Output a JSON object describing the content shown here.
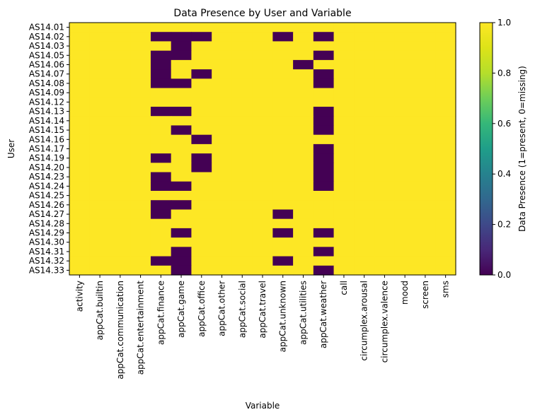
{
  "chart_data": {
    "type": "heatmap",
    "title": "Data Presence by User and Variable",
    "xlabel": "Variable",
    "ylabel": "User",
    "colorbar_label": "Data Presence (1=present, 0=missing)",
    "colorbar_ticks": [
      "0.0",
      "0.2",
      "0.4",
      "0.6",
      "0.8",
      "1.0"
    ],
    "colorbar_range": [
      0,
      1
    ],
    "colormap": "viridis",
    "colors": {
      "present": "#fde725",
      "missing": "#440154"
    },
    "x_categories": [
      "activity",
      "appCat.builtin",
      "appCat.communication",
      "appCat.entertainment",
      "appCat.finance",
      "appCat.game",
      "appCat.office",
      "appCat.other",
      "appCat.social",
      "appCat.travel",
      "appCat.unknown",
      "appCat.utilities",
      "appCat.weather",
      "call",
      "circumplex.arousal",
      "circumplex.valence",
      "mood",
      "screen",
      "sms"
    ],
    "y_categories": [
      "AS14.01",
      "AS14.02",
      "AS14.03",
      "AS14.05",
      "AS14.06",
      "AS14.07",
      "AS14.08",
      "AS14.09",
      "AS14.12",
      "AS14.13",
      "AS14.14",
      "AS14.15",
      "AS14.16",
      "AS14.17",
      "AS14.19",
      "AS14.20",
      "AS14.23",
      "AS14.24",
      "AS14.25",
      "AS14.26",
      "AS14.27",
      "AS14.28",
      "AS14.29",
      "AS14.30",
      "AS14.31",
      "AS14.32",
      "AS14.33"
    ],
    "values": [
      [
        1,
        1,
        1,
        1,
        1,
        1,
        1,
        1,
        1,
        1,
        1,
        1,
        1,
        1,
        1,
        1,
        1,
        1,
        1
      ],
      [
        1,
        1,
        1,
        1,
        0,
        0,
        0,
        1,
        1,
        1,
        0,
        1,
        0,
        1,
        1,
        1,
        1,
        1,
        1
      ],
      [
        1,
        1,
        1,
        1,
        1,
        0,
        1,
        1,
        1,
        1,
        1,
        1,
        1,
        1,
        1,
        1,
        1,
        1,
        1
      ],
      [
        1,
        1,
        1,
        1,
        0,
        0,
        1,
        1,
        1,
        1,
        1,
        1,
        0,
        1,
        1,
        1,
        1,
        1,
        1
      ],
      [
        1,
        1,
        1,
        1,
        0,
        1,
        1,
        1,
        1,
        1,
        1,
        0,
        1,
        1,
        1,
        1,
        1,
        1,
        1
      ],
      [
        1,
        1,
        1,
        1,
        0,
        1,
        0,
        1,
        1,
        1,
        1,
        1,
        0,
        1,
        1,
        1,
        1,
        1,
        1
      ],
      [
        1,
        1,
        1,
        1,
        0,
        0,
        1,
        1,
        1,
        1,
        1,
        1,
        0,
        1,
        1,
        1,
        1,
        1,
        1
      ],
      [
        1,
        1,
        1,
        1,
        1,
        1,
        1,
        1,
        1,
        1,
        1,
        1,
        1,
        1,
        1,
        1,
        1,
        1,
        1
      ],
      [
        1,
        1,
        1,
        1,
        1,
        1,
        1,
        1,
        1,
        1,
        1,
        1,
        1,
        1,
        1,
        1,
        1,
        1,
        1
      ],
      [
        1,
        1,
        1,
        1,
        0,
        0,
        1,
        1,
        1,
        1,
        1,
        1,
        0,
        1,
        1,
        1,
        1,
        1,
        1
      ],
      [
        1,
        1,
        1,
        1,
        1,
        1,
        1,
        1,
        1,
        1,
        1,
        1,
        0,
        1,
        1,
        1,
        1,
        1,
        1
      ],
      [
        1,
        1,
        1,
        1,
        1,
        0,
        1,
        1,
        1,
        1,
        1,
        1,
        0,
        1,
        1,
        1,
        1,
        1,
        1
      ],
      [
        1,
        1,
        1,
        1,
        1,
        1,
        0,
        1,
        1,
        1,
        1,
        1,
        1,
        1,
        1,
        1,
        1,
        1,
        1
      ],
      [
        1,
        1,
        1,
        1,
        1,
        1,
        1,
        1,
        1,
        1,
        1,
        1,
        0,
        1,
        1,
        1,
        1,
        1,
        1
      ],
      [
        1,
        1,
        1,
        1,
        0,
        1,
        0,
        1,
        1,
        1,
        1,
        1,
        0,
        1,
        1,
        1,
        1,
        1,
        1
      ],
      [
        1,
        1,
        1,
        1,
        1,
        1,
        0,
        1,
        1,
        1,
        1,
        1,
        0,
        1,
        1,
        1,
        1,
        1,
        1
      ],
      [
        1,
        1,
        1,
        1,
        0,
        1,
        1,
        1,
        1,
        1,
        1,
        1,
        0,
        1,
        1,
        1,
        1,
        1,
        1
      ],
      [
        1,
        1,
        1,
        1,
        0,
        0,
        1,
        1,
        1,
        1,
        1,
        1,
        0,
        1,
        1,
        1,
        1,
        1,
        1
      ],
      [
        1,
        1,
        1,
        1,
        1,
        1,
        1,
        1,
        1,
        1,
        1,
        1,
        1,
        1,
        1,
        1,
        1,
        1,
        1
      ],
      [
        1,
        1,
        1,
        1,
        0,
        0,
        1,
        1,
        1,
        1,
        1,
        1,
        1,
        1,
        1,
        1,
        1,
        1,
        1
      ],
      [
        1,
        1,
        1,
        1,
        0,
        1,
        1,
        1,
        1,
        1,
        0,
        1,
        1,
        1,
        1,
        1,
        1,
        1,
        1
      ],
      [
        1,
        1,
        1,
        1,
        1,
        1,
        1,
        1,
        1,
        1,
        1,
        1,
        1,
        1,
        1,
        1,
        1,
        1,
        1
      ],
      [
        1,
        1,
        1,
        1,
        1,
        0,
        1,
        1,
        1,
        1,
        0,
        1,
        0,
        1,
        1,
        1,
        1,
        1,
        1
      ],
      [
        1,
        1,
        1,
        1,
        1,
        1,
        1,
        1,
        1,
        1,
        1,
        1,
        1,
        1,
        1,
        1,
        1,
        1,
        1
      ],
      [
        1,
        1,
        1,
        1,
        1,
        0,
        1,
        1,
        1,
        1,
        1,
        1,
        0,
        1,
        1,
        1,
        1,
        1,
        1
      ],
      [
        1,
        1,
        1,
        1,
        0,
        0,
        1,
        1,
        1,
        1,
        0,
        1,
        1,
        1,
        1,
        1,
        1,
        1,
        1
      ],
      [
        1,
        1,
        1,
        1,
        1,
        0,
        1,
        1,
        1,
        1,
        1,
        1,
        0,
        1,
        1,
        1,
        1,
        1,
        1
      ]
    ]
  }
}
